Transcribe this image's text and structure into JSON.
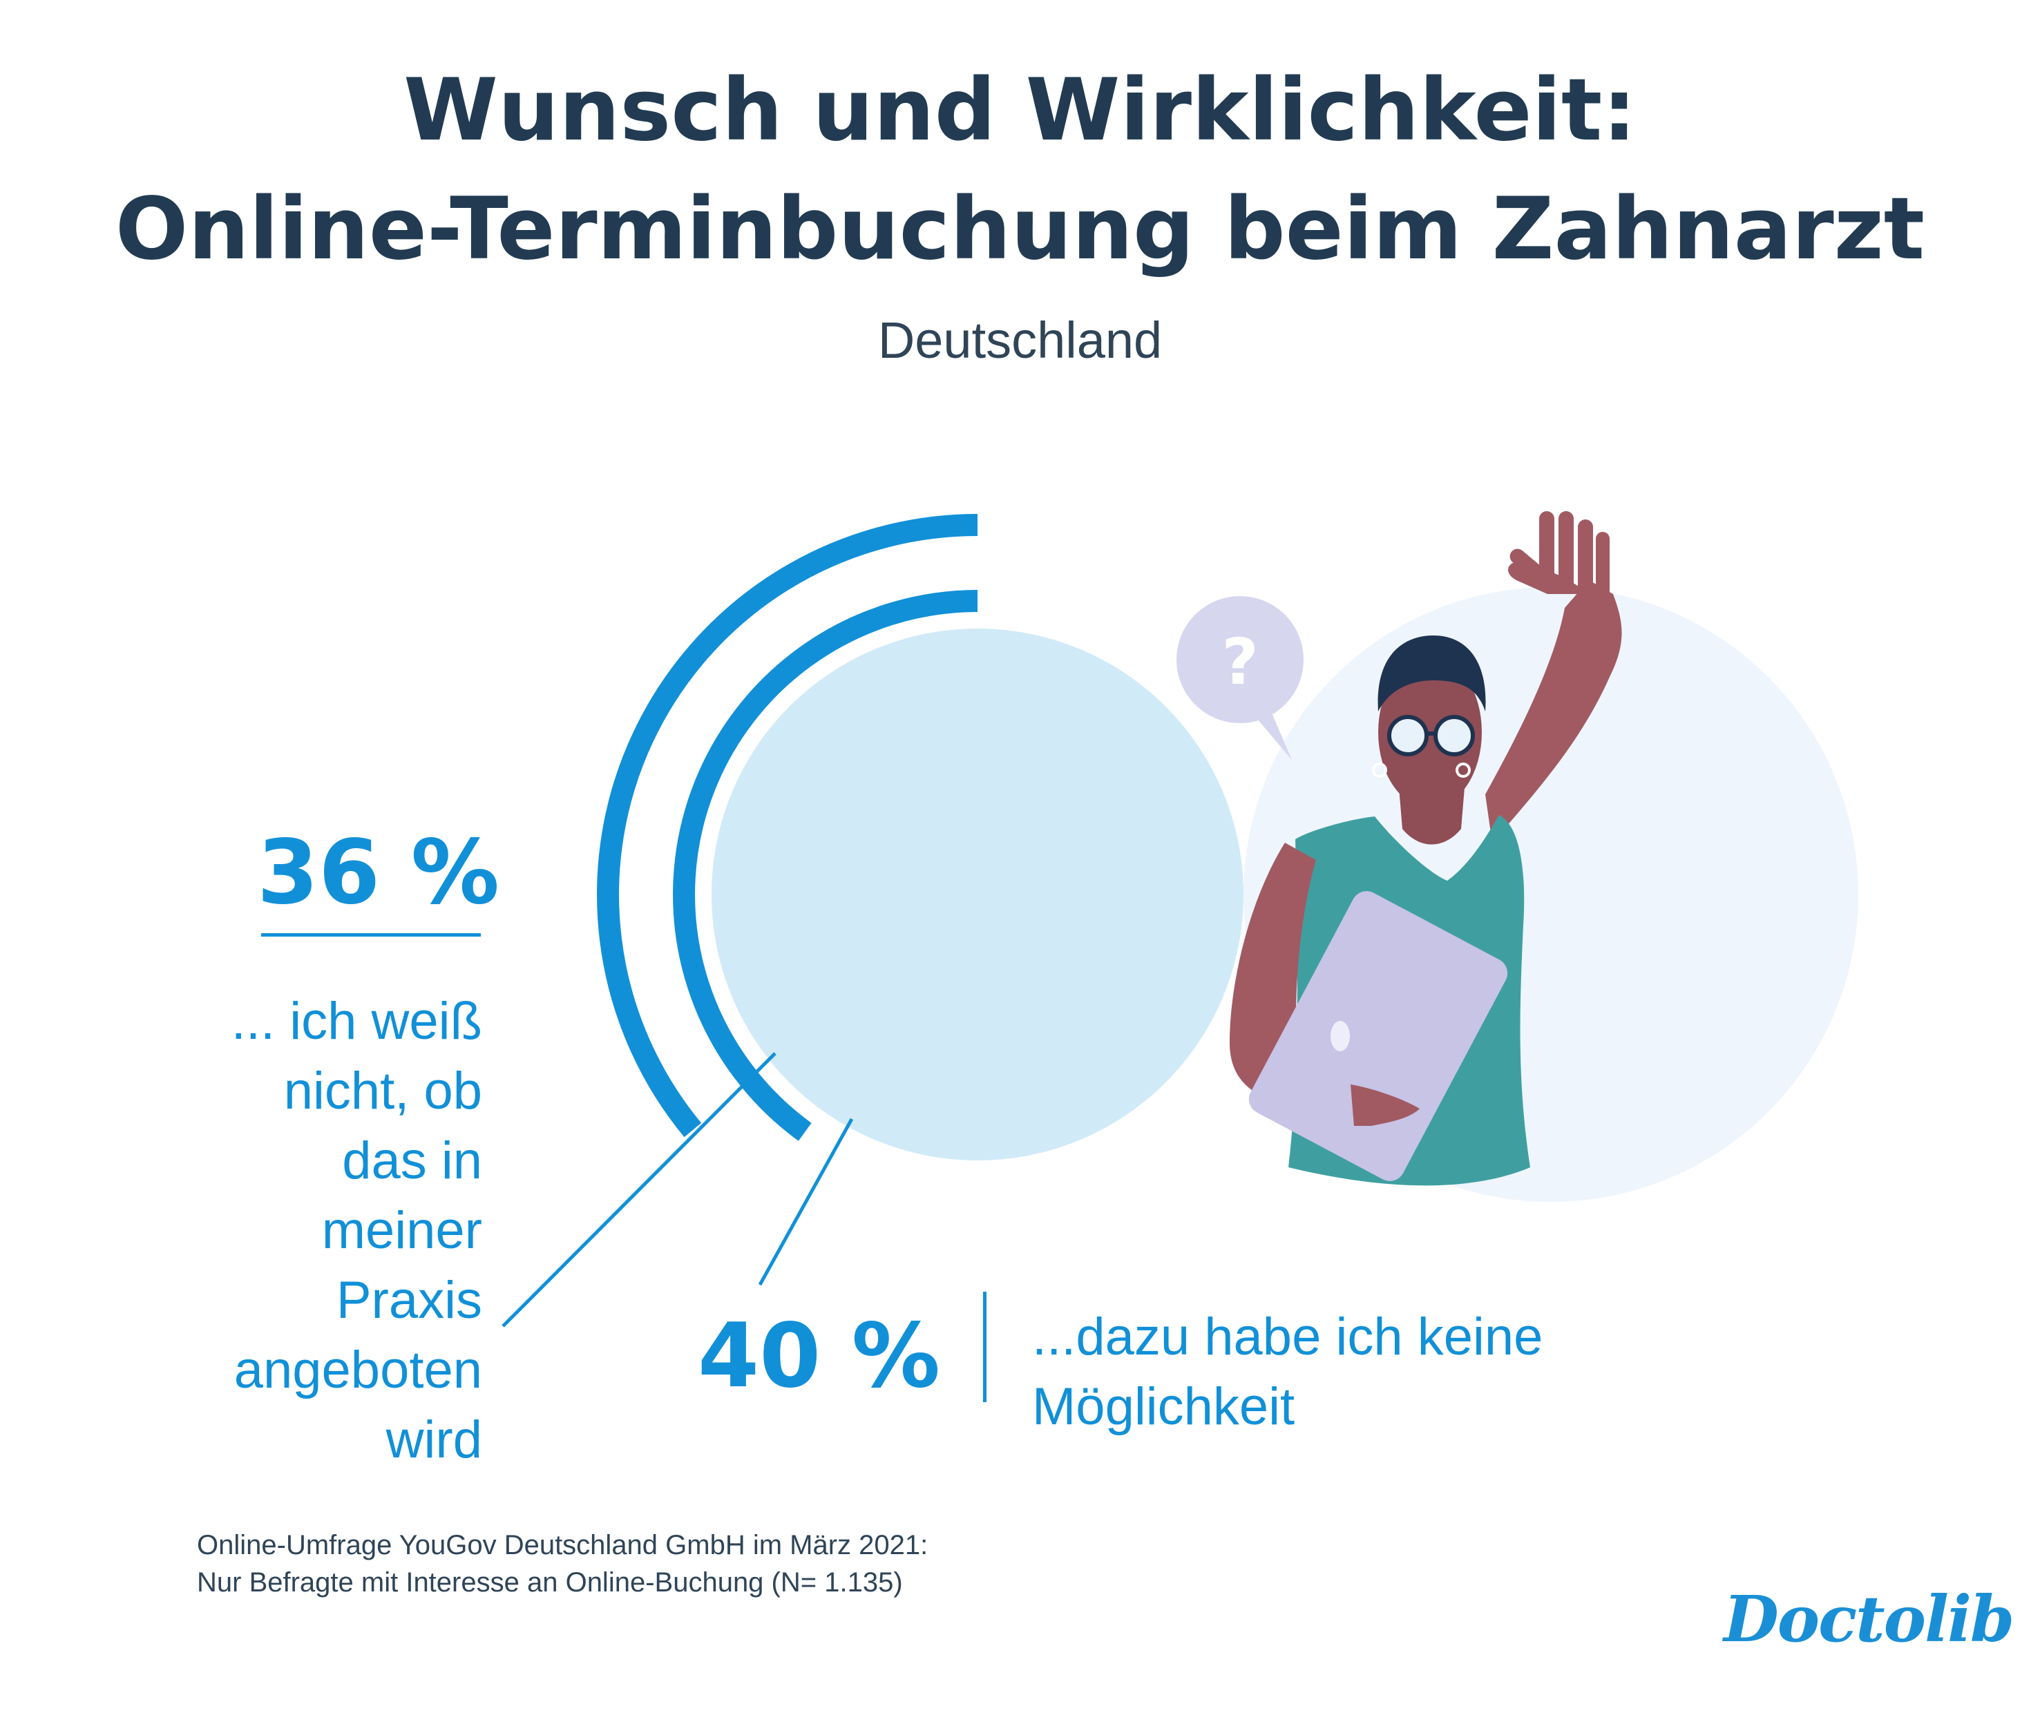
{
  "header": {
    "title_line1": "Wunsch und Wirklichkeit:",
    "title_line2": "Online-Terminbuchung beim Zahnarzt",
    "subtitle": "Deutschland"
  },
  "chart_data": {
    "type": "radial-bar",
    "series": [
      {
        "value": 36,
        "label": "36 %",
        "description": "... ich weiß nicht, ob das in meiner Praxis angeboten wird"
      },
      {
        "value": 40,
        "label": "40 %",
        "description": "...dazu habe ich keine Möglichkeit"
      }
    ],
    "unit": "%",
    "colors": {
      "arc": "#1190d8",
      "inner_disc": "#d1eaf8",
      "text": "#1190d8",
      "title": "#223b52"
    }
  },
  "labels": {
    "a_pct": "36 %",
    "a_lines": [
      "... ich weiß",
      "nicht, ob",
      "das in",
      "meiner",
      "Praxis",
      "angeboten",
      "wird"
    ],
    "b_pct": "40 %",
    "b_lines": [
      "...dazu habe ich keine",
      "Möglichkeit"
    ]
  },
  "footer": {
    "source_line1": "Online-Umfrage YouGov Deutschland GmbH im März 2021:",
    "source_line2": "Nur Befragte mit Interesse an Online-Buchung (N= 1.135)",
    "logo": "Doctolib"
  },
  "illustration": {
    "speech_bubble_text": "?",
    "icons": [
      "woman-raising-hand-illustration",
      "question-bubble-icon",
      "laptop-icon"
    ]
  }
}
